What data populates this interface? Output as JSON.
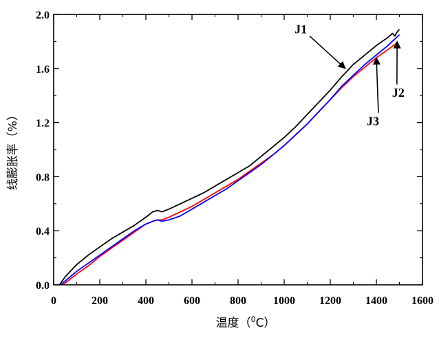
{
  "chart_data": {
    "type": "line",
    "xlabel": "温度（",
    "xlabel_sup": "0",
    "xlabel_tail": "C）",
    "ylabel": "线膨胀率（%）",
    "xlim": [
      0,
      1600
    ],
    "ylim": [
      0.0,
      2.0
    ],
    "xticks": [
      0,
      200,
      400,
      600,
      800,
      1000,
      1200,
      1400,
      1600
    ],
    "yticks": [
      0.0,
      0.4,
      0.8,
      1.2,
      1.6,
      2.0
    ],
    "xtick_labels": [
      "0",
      "200",
      "400",
      "600",
      "800",
      "1000",
      "1200",
      "1400",
      "1600"
    ],
    "ytick_labels": [
      "0.0",
      "0.4",
      "0.8",
      "1.2",
      "1.6",
      "2.0"
    ],
    "grid": false,
    "legend": "none",
    "series": [
      {
        "name": "J1",
        "color": "#000000",
        "x": [
          25,
          50,
          100,
          150,
          200,
          250,
          300,
          350,
          400,
          430,
          450,
          470,
          500,
          550,
          600,
          650,
          700,
          750,
          800,
          850,
          900,
          950,
          1000,
          1050,
          1100,
          1150,
          1200,
          1250,
          1300,
          1350,
          1400,
          1450,
          1470,
          1480,
          1490,
          1500
        ],
        "values": [
          0.0,
          0.06,
          0.15,
          0.22,
          0.28,
          0.34,
          0.39,
          0.44,
          0.5,
          0.54,
          0.55,
          0.54,
          0.56,
          0.6,
          0.64,
          0.68,
          0.73,
          0.78,
          0.83,
          0.88,
          0.95,
          1.02,
          1.09,
          1.17,
          1.26,
          1.35,
          1.44,
          1.54,
          1.63,
          1.7,
          1.77,
          1.83,
          1.86,
          1.84,
          1.87,
          1.89
        ]
      },
      {
        "name": "J2",
        "color": "#ff0000",
        "x": [
          40,
          100,
          150,
          200,
          250,
          300,
          350,
          400,
          430,
          450,
          470,
          500,
          550,
          600,
          650,
          700,
          750,
          800,
          850,
          900,
          950,
          1000,
          1050,
          1100,
          1150,
          1200,
          1250,
          1300,
          1350,
          1400,
          1450,
          1490
        ],
        "values": [
          0.0,
          0.08,
          0.14,
          0.21,
          0.27,
          0.33,
          0.39,
          0.45,
          0.47,
          0.48,
          0.48,
          0.5,
          0.54,
          0.58,
          0.63,
          0.68,
          0.73,
          0.78,
          0.84,
          0.9,
          0.96,
          1.03,
          1.11,
          1.19,
          1.28,
          1.37,
          1.46,
          1.54,
          1.61,
          1.68,
          1.74,
          1.79
        ]
      },
      {
        "name": "J3",
        "color": "#0000ff",
        "x": [
          30,
          100,
          150,
          200,
          250,
          300,
          350,
          400,
          430,
          450,
          470,
          500,
          550,
          600,
          650,
          700,
          750,
          800,
          850,
          900,
          950,
          1000,
          1050,
          1100,
          1150,
          1200,
          1250,
          1300,
          1350,
          1400,
          1450,
          1500
        ],
        "values": [
          0.0,
          0.1,
          0.16,
          0.22,
          0.28,
          0.34,
          0.4,
          0.45,
          0.47,
          0.48,
          0.47,
          0.48,
          0.51,
          0.56,
          0.61,
          0.66,
          0.71,
          0.77,
          0.83,
          0.89,
          0.96,
          1.03,
          1.11,
          1.19,
          1.28,
          1.37,
          1.47,
          1.55,
          1.63,
          1.7,
          1.77,
          1.85
        ]
      }
    ],
    "annotations": [
      {
        "text": "J1",
        "series": "J1",
        "label_x": 1045,
        "label_y": 1.86,
        "arrow_x": 1265,
        "arrow_y": 1.6
      },
      {
        "text": "J2",
        "series": "J2",
        "label_x": 1495,
        "label_y": 1.39,
        "arrow_x": 1490,
        "arrow_y": 1.8
      },
      {
        "text": "J3",
        "series": "J3",
        "label_x": 1385,
        "label_y": 1.18,
        "arrow_x": 1400,
        "arrow_y": 1.68
      }
    ]
  }
}
